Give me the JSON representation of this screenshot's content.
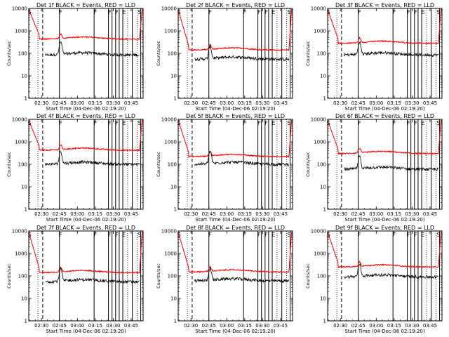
{
  "chart_data": {
    "type": "line",
    "panels": [
      {
        "title": "Det 1f  BLACK = Events, RED = LLD",
        "xlabel": "Start Time (04-Dec-06 02:19:20)"
      },
      {
        "title": "Det 2f  BLACK = Events, RED = LLD",
        "xlabel": "Start Time (04-Dec-06 02:19:20)"
      },
      {
        "title": "Det 3f  BLACK = Events, RED = LLD",
        "xlabel": "Start Time (04-Dec-06 02:19:20)"
      },
      {
        "title": "Det 4f  BLACK = Events, RED = LLD",
        "xlabel": "Start Time (04-Dec-06 02:19:20)"
      },
      {
        "title": "Det 5f  BLACK = Events, RED = LLD",
        "xlabel": "Start Time (04-Dec-06 02:19:20)"
      },
      {
        "title": "Det 6f  BLACK = Events, RED = LLD",
        "xlabel": "Start Time (04-Dec-06 02:19:20)"
      },
      {
        "title": "Det 7f  BLACK = Events, RED = LLD",
        "xlabel": "Start Time (04-Dec-06 02:19:20)"
      },
      {
        "title": "Det 8f  BLACK = Events, RED = LLD",
        "xlabel": "Start Time (04-Dec-06 02:19:20)"
      },
      {
        "title": "Det 9f  BLACK = Events, RED = LLD",
        "xlabel": "Start Time (04-Dec-06 02:19:20)"
      }
    ],
    "ylabel": "Counts/sec",
    "y_scale": "log",
    "ylim": [
      1,
      10000
    ],
    "y_ticks": [
      "1",
      "10",
      "100",
      "1000",
      "10000"
    ],
    "xlim": [
      "02:19:20",
      "03:55:00"
    ],
    "x_ticks": [
      "02:30",
      "02:45",
      "03:00",
      "03:15",
      "03:30",
      "03:45"
    ],
    "series": [
      {
        "name": "LLD",
        "color": "#ff0000"
      },
      {
        "name": "Events",
        "color": "#000000"
      }
    ],
    "solid_markers": [
      "02:45",
      "03:14",
      "03:26",
      "03:29",
      "03:32",
      "03:35",
      "03:38",
      "03:46",
      "03:53"
    ],
    "dashed_markers": [
      "02:31"
    ],
    "dotted_markers": [
      "02:27",
      "03:42",
      "03:50"
    ],
    "marker_letters": [
      {
        "text": "S",
        "at": "02:20"
      },
      {
        "text": "F",
        "at": "02:46"
      },
      {
        "text": "F",
        "at": "03:15"
      },
      {
        "text": "F",
        "at": "03:27"
      },
      {
        "text": "F",
        "at": "03:33"
      },
      {
        "text": "E",
        "at": "03:39"
      },
      {
        "text": "S",
        "at": "03:52"
      }
    ]
  }
}
